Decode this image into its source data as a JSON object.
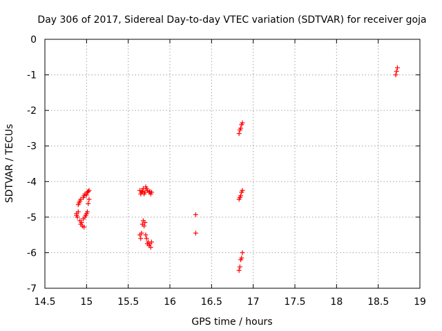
{
  "chart_data": {
    "type": "scatter",
    "title": "Day 306 of 2017, Sidereal Day-to-day VTEC variation (SDTVAR) for receiver goja",
    "xlabel": "GPS time / hours",
    "ylabel": "SDTVAR / TECUs",
    "xlim": [
      14.5,
      19
    ],
    "ylim": [
      -7,
      0
    ],
    "grid": true,
    "marker": "+",
    "color": "#ff0000",
    "x_ticks": [
      {
        "value": 14.5,
        "label": "14.5"
      },
      {
        "value": 15,
        "label": "15"
      },
      {
        "value": 15.5,
        "label": "15.5"
      },
      {
        "value": 16,
        "label": "16"
      },
      {
        "value": 16.5,
        "label": "16.5"
      },
      {
        "value": 17,
        "label": "17"
      },
      {
        "value": 17.5,
        "label": "17.5"
      },
      {
        "value": 18,
        "label": "18"
      },
      {
        "value": 18.5,
        "label": "18.5"
      },
      {
        "value": 19,
        "label": "19"
      }
    ],
    "y_ticks": [
      {
        "value": 0,
        "label": "0"
      },
      {
        "value": -1,
        "label": "-1"
      },
      {
        "value": -2,
        "label": "-2"
      },
      {
        "value": -3,
        "label": "-3"
      },
      {
        "value": -4,
        "label": "-4"
      },
      {
        "value": -5,
        "label": "-5"
      },
      {
        "value": -6,
        "label": "-6"
      },
      {
        "value": -7,
        "label": "-7"
      }
    ],
    "series": [
      {
        "name": "SDTVAR",
        "points": [
          [
            14.88,
            -4.95
          ],
          [
            14.88,
            -4.9
          ],
          [
            14.89,
            -5.0
          ],
          [
            14.9,
            -4.85
          ],
          [
            14.9,
            -4.65
          ],
          [
            14.91,
            -4.6
          ],
          [
            14.92,
            -4.55
          ],
          [
            14.93,
            -4.5
          ],
          [
            14.92,
            -5.1
          ],
          [
            14.93,
            -5.2
          ],
          [
            14.94,
            -5.15
          ],
          [
            14.95,
            -5.25
          ],
          [
            14.96,
            -4.45
          ],
          [
            14.97,
            -4.4
          ],
          [
            14.98,
            -4.35
          ],
          [
            14.96,
            -5.05
          ],
          [
            14.97,
            -5.28
          ],
          [
            14.98,
            -5.0
          ],
          [
            14.99,
            -4.95
          ],
          [
            15.0,
            -4.9
          ],
          [
            15.0,
            -4.38
          ],
          [
            15.01,
            -4.3
          ],
          [
            15.02,
            -4.28
          ],
          [
            15.03,
            -4.25
          ],
          [
            15.01,
            -4.85
          ],
          [
            15.02,
            -4.62
          ],
          [
            15.03,
            -4.5
          ],
          [
            15.64,
            -4.25
          ],
          [
            15.65,
            -4.35
          ],
          [
            15.66,
            -4.3
          ],
          [
            15.67,
            -4.28
          ],
          [
            15.68,
            -4.2
          ],
          [
            15.69,
            -4.35
          ],
          [
            15.7,
            -4.3
          ],
          [
            15.71,
            -4.15
          ],
          [
            15.72,
            -4.2
          ],
          [
            15.73,
            -4.25
          ],
          [
            15.75,
            -4.3
          ],
          [
            15.76,
            -4.28
          ],
          [
            15.77,
            -4.35
          ],
          [
            15.78,
            -4.3
          ],
          [
            15.64,
            -5.5
          ],
          [
            15.65,
            -5.6
          ],
          [
            15.66,
            -5.45
          ],
          [
            15.67,
            -5.2
          ],
          [
            15.68,
            -5.1
          ],
          [
            15.69,
            -5.25
          ],
          [
            15.7,
            -5.15
          ],
          [
            15.71,
            -5.5
          ],
          [
            15.72,
            -5.6
          ],
          [
            15.73,
            -5.75
          ],
          [
            15.74,
            -5.7
          ],
          [
            15.75,
            -5.8
          ],
          [
            15.76,
            -5.75
          ],
          [
            15.77,
            -5.85
          ],
          [
            15.78,
            -5.7
          ],
          [
            16.31,
            -4.93
          ],
          [
            16.31,
            -5.45
          ],
          [
            16.83,
            -2.65
          ],
          [
            16.84,
            -2.55
          ],
          [
            16.85,
            -2.5
          ],
          [
            16.86,
            -2.4
          ],
          [
            16.87,
            -2.35
          ],
          [
            16.83,
            -4.5
          ],
          [
            16.84,
            -4.45
          ],
          [
            16.85,
            -4.4
          ],
          [
            16.86,
            -4.3
          ],
          [
            16.87,
            -4.25
          ],
          [
            16.83,
            -6.5
          ],
          [
            16.84,
            -6.4
          ],
          [
            16.85,
            -6.2
          ],
          [
            16.86,
            -6.15
          ],
          [
            16.87,
            -6.0
          ],
          [
            18.71,
            -1.0
          ],
          [
            18.72,
            -0.9
          ],
          [
            18.73,
            -0.8
          ]
        ]
      }
    ]
  }
}
